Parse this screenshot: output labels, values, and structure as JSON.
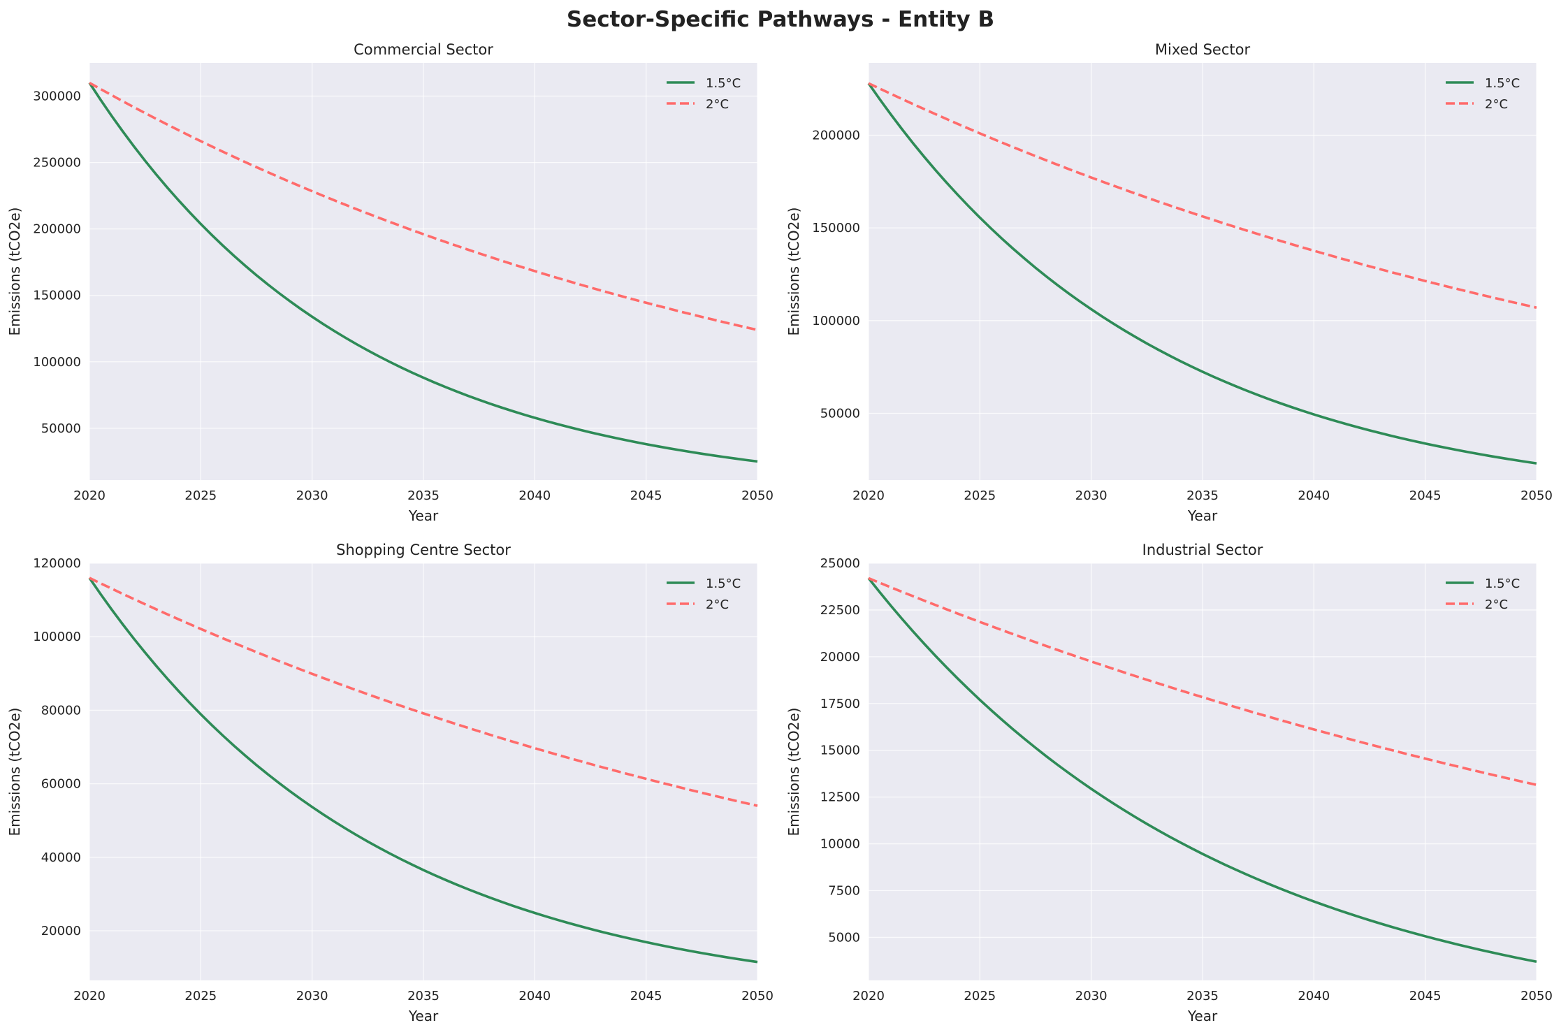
{
  "figure": {
    "suptitle": "Sector-Specific Pathways - Entity B"
  },
  "colors": {
    "axes_bg": "#eaeaf2",
    "grid": "#ffffff",
    "pathway_15": "#2e8b57",
    "pathway_2": "#ff6b6b"
  },
  "chart_data": [
    {
      "type": "line",
      "title": "Commercial Sector",
      "xlabel": "Year",
      "ylabel": "Emissions (tCO2e)",
      "xlim": [
        2020,
        2050
      ],
      "ylim": [
        11000,
        325000
      ],
      "xticks": [
        2020,
        2025,
        2030,
        2035,
        2040,
        2045,
        2050
      ],
      "yticks": [
        50000,
        100000,
        150000,
        200000,
        250000,
        300000
      ],
      "grid": true,
      "legend": "top-right",
      "series": [
        {
          "name": "1.5°C",
          "style": "solid",
          "start": 310000,
          "end": 25000
        },
        {
          "name": "2°C",
          "style": "dashed",
          "start": 310000,
          "end": 124000
        }
      ]
    },
    {
      "type": "line",
      "title": "Mixed Sector",
      "xlabel": "Year",
      "ylabel": "Emissions (tCO2e)",
      "xlim": [
        2020,
        2050
      ],
      "ylim": [
        14000,
        239000
      ],
      "xticks": [
        2020,
        2025,
        2030,
        2035,
        2040,
        2045,
        2050
      ],
      "yticks": [
        50000,
        100000,
        150000,
        200000
      ],
      "grid": true,
      "legend": "top-right",
      "series": [
        {
          "name": "1.5°C",
          "style": "solid",
          "start": 228000,
          "end": 23000
        },
        {
          "name": "2°C",
          "style": "dashed",
          "start": 228000,
          "end": 107000
        }
      ]
    },
    {
      "type": "line",
      "title": "Shopping Centre Sector",
      "xlabel": "Year",
      "ylabel": "Emissions (tCO2e)",
      "xlim": [
        2020,
        2050
      ],
      "ylim": [
        6500,
        120000
      ],
      "xticks": [
        2020,
        2025,
        2030,
        2035,
        2040,
        2045,
        2050
      ],
      "yticks": [
        20000,
        40000,
        60000,
        80000,
        100000,
        120000
      ],
      "grid": true,
      "legend": "top-right",
      "series": [
        {
          "name": "1.5°C",
          "style": "solid",
          "start": 116000,
          "end": 11500
        },
        {
          "name": "2°C",
          "style": "dashed",
          "start": 116000,
          "end": 54000
        }
      ]
    },
    {
      "type": "line",
      "title": "Industrial Sector",
      "xlabel": "Year",
      "ylabel": "Emissions (tCO2e)",
      "xlim": [
        2020,
        2050
      ],
      "ylim": [
        2700,
        25000
      ],
      "xticks": [
        2020,
        2025,
        2030,
        2035,
        2040,
        2045,
        2050
      ],
      "yticks": [
        5000,
        7500,
        10000,
        12500,
        15000,
        17500,
        20000,
        22500,
        25000
      ],
      "grid": true,
      "legend": "top-right",
      "series": [
        {
          "name": "1.5°C",
          "style": "solid",
          "start": 24200,
          "end": 3700
        },
        {
          "name": "2°C",
          "style": "dashed",
          "start": 24200,
          "end": 13150
        }
      ]
    }
  ]
}
